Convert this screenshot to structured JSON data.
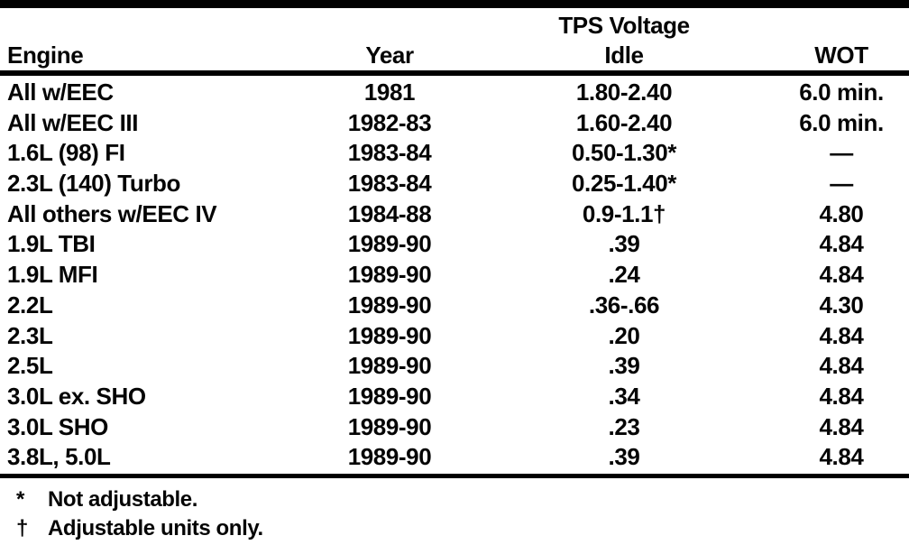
{
  "table": {
    "group_header": "TPS Voltage",
    "columns": [
      "Engine",
      "Year",
      "Idle",
      "WOT"
    ],
    "rows": [
      {
        "engine": "All w/EEC",
        "year": "1981",
        "idle": "1.80-2.40",
        "wot": "6.0 min."
      },
      {
        "engine": "All w/EEC III",
        "year": "1982-83",
        "idle": "1.60-2.40",
        "wot": "6.0 min."
      },
      {
        "engine": "1.6L (98) FI",
        "year": "1983-84",
        "idle": "0.50-1.30*",
        "wot": "—"
      },
      {
        "engine": "2.3L (140) Turbo",
        "year": "1983-84",
        "idle": "0.25-1.40*",
        "wot": "—"
      },
      {
        "engine": "All others w/EEC IV",
        "year": "1984-88",
        "idle": "0.9-1.1†",
        "wot": "4.80"
      },
      {
        "engine": "1.9L TBI",
        "year": "1989-90",
        "idle": ".39",
        "wot": "4.84"
      },
      {
        "engine": "1.9L MFI",
        "year": "1989-90",
        "idle": ".24",
        "wot": "4.84"
      },
      {
        "engine": "2.2L",
        "year": "1989-90",
        "idle": ".36-.66",
        "wot": "4.30"
      },
      {
        "engine": "2.3L",
        "year": "1989-90",
        "idle": ".20",
        "wot": "4.84"
      },
      {
        "engine": "2.5L",
        "year": "1989-90",
        "idle": ".39",
        "wot": "4.84"
      },
      {
        "engine": "3.0L ex. SHO",
        "year": "1989-90",
        "idle": ".34",
        "wot": "4.84"
      },
      {
        "engine": "3.0L SHO",
        "year": "1989-90",
        "idle": ".23",
        "wot": "4.84"
      },
      {
        "engine": "3.8L, 5.0L",
        "year": "1989-90",
        "idle": ".39",
        "wot": "4.84"
      }
    ],
    "footnotes": [
      {
        "marker": "*",
        "text": "Not adjustable."
      },
      {
        "marker": "†",
        "text": "Adjustable units only."
      }
    ],
    "ink_color": "#050505",
    "paper_color": "#ffffff"
  }
}
